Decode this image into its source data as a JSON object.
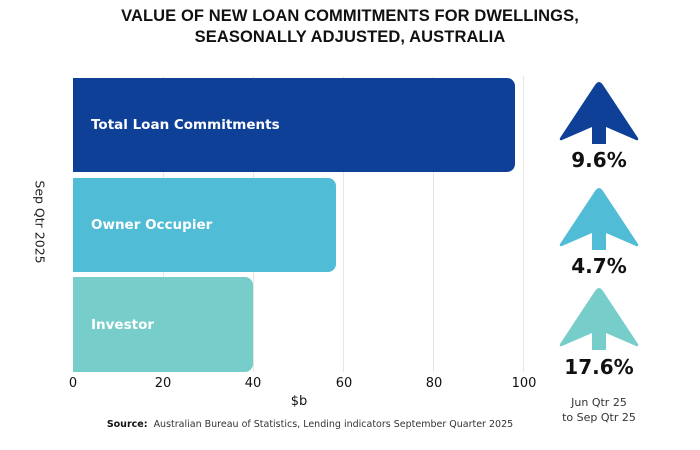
{
  "chart_data": {
    "type": "bar",
    "orientation": "horizontal",
    "title": "VALUE OF NEW LOAN COMMITMENTS FOR DWELLINGS, SEASONALLY ADJUSTED, AUSTRALIA",
    "title_line1": "VALUE OF NEW LOAN COMMITMENTS FOR DWELLINGS,",
    "title_line2": "SEASONALLY ADJUSTED, AUSTRALIA",
    "categories": [
      "Total Loan Commitments",
      "Owner Occupier",
      "Investor"
    ],
    "values": [
      98.0,
      58.3,
      39.9
    ],
    "colors": [
      "#0f4098",
      "#51bcd6",
      "#76cdc9"
    ],
    "xlabel": "$b",
    "ylabel": "Sep Qtr 2025",
    "xlim": [
      0,
      100
    ],
    "xticks": [
      "0",
      "20",
      "40",
      "60",
      "80",
      "100"
    ],
    "grid": true,
    "annotations": {
      "changes": [
        "9.6%",
        "4.7%",
        "17.6%"
      ],
      "direction": [
        "up",
        "up",
        "up"
      ],
      "period": [
        "Jun Qtr 25",
        "to Sep Qtr 25"
      ]
    },
    "source_label": "Source:",
    "source_text": "Australian Bureau of Statistics, Lending indicators September Quarter 2025"
  }
}
